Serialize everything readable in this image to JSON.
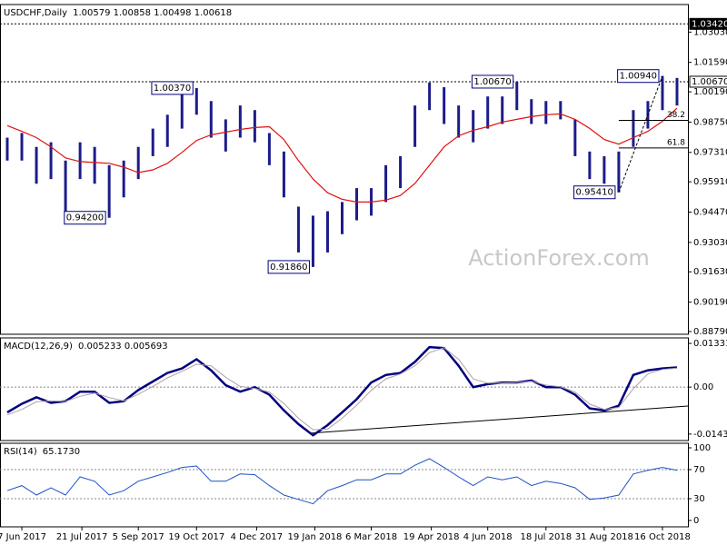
{
  "chart_data": [
    {
      "type": "hilo",
      "title": "USDCHF,Daily",
      "subtitle": "1.00579 1.00858 1.00498 1.00618",
      "x": [
        4,
        12,
        20,
        28,
        36,
        44,
        52,
        60,
        68,
        76,
        84,
        92,
        100,
        108,
        116,
        124,
        132,
        140,
        148,
        156,
        164,
        172,
        180,
        188,
        196,
        204,
        212,
        220,
        228,
        236,
        244,
        252,
        260,
        268,
        276,
        284,
        292,
        300,
        308,
        316,
        324,
        332,
        340,
        348,
        356,
        364,
        372
      ],
      "xlim": [
        0,
        378
      ],
      "high": [
        0.9801,
        0.9823,
        0.9757,
        0.9779,
        0.9692,
        0.9779,
        0.9757,
        0.967,
        0.9692,
        0.9757,
        0.9844,
        0.991,
        1.0019,
        1.0037,
        0.9975,
        0.9888,
        0.9954,
        0.9932,
        0.9823,
        0.9735,
        0.9473,
        0.943,
        0.9451,
        0.9495,
        0.9561,
        0.9561,
        0.967,
        0.9713,
        0.9954,
        1.0063,
        1.0041,
        0.9954,
        0.9932,
        0.9997,
        0.9997,
        1.0067,
        0.9984,
        0.9975,
        0.9975,
        0.9888,
        0.9735,
        0.9713,
        0.9735,
        0.9932,
        0.9975,
        1.0094,
        1.0085
      ],
      "low": [
        0.9692,
        0.9692,
        0.9582,
        0.9604,
        0.944,
        0.9604,
        0.9582,
        0.942,
        0.9517,
        0.9604,
        0.9713,
        0.9757,
        0.9844,
        0.991,
        0.9801,
        0.9735,
        0.9801,
        0.9779,
        0.967,
        0.9517,
        0.9255,
        0.9186,
        0.9255,
        0.9342,
        0.9408,
        0.943,
        0.9495,
        0.9561,
        0.9757,
        0.9932,
        0.9866,
        0.9801,
        0.9779,
        0.9844,
        0.9866,
        0.9932,
        0.9866,
        0.9866,
        0.9888,
        0.9713,
        0.9604,
        0.9582,
        0.9541,
        0.9757,
        0.9844,
        0.9932,
        0.9954
      ],
      "color": "#1c1c8a",
      "series": [
        {
          "color": "#e01010",
          "values": [
            0.9858,
            0.9831,
            0.9801,
            0.9757,
            0.9705,
            0.9687,
            0.9683,
            0.9679,
            0.9661,
            0.9635,
            0.9648,
            0.9679,
            0.9731,
            0.9788,
            0.9814,
            0.9827,
            0.984,
            0.9849,
            0.9853,
            0.9792,
            0.9692,
            0.9604,
            0.9539,
            0.9508,
            0.9495,
            0.9495,
            0.9504,
            0.9526,
            0.9583,
            0.967,
            0.9757,
            0.981,
            0.9836,
            0.9853,
            0.9875,
            0.9888,
            0.9901,
            0.991,
            0.9914,
            0.9888,
            0.9845,
            0.9792,
            0.977,
            0.9801,
            0.9831,
            0.9879,
            0.9941
          ]
        }
      ],
      "ylim": [
        0.8866,
        1.0434
      ],
      "yticks": [
        {
          "value": 1.0303,
          "label": "1.03030"
        },
        {
          "value": 1.0159,
          "label": "1.01590"
        },
        {
          "value": 1.0019,
          "label": "1.00190"
        },
        {
          "value": 0.9875,
          "label": "0.98750"
        },
        {
          "value": 0.9731,
          "label": "0.97310"
        },
        {
          "value": 0.9591,
          "label": "0.95910"
        },
        {
          "value": 0.9447,
          "label": "0.94470"
        },
        {
          "value": 0.9303,
          "label": "0.93030"
        },
        {
          "value": 0.9163,
          "label": "0.91630"
        },
        {
          "value": 0.9019,
          "label": "0.90190"
        },
        {
          "value": 0.8879,
          "label": "0.88790"
        }
      ],
      "levels": [
        {
          "value": 1.0342,
          "label": "1.03420",
          "filled": true
        },
        {
          "value": 1.0067,
          "label": "1.00670",
          "filled": false
        }
      ],
      "annotations": [
        {
          "x": 108,
          "value": 1.0037,
          "label": "1.00370"
        },
        {
          "x": 60,
          "value": 0.942,
          "label": "0.94200"
        },
        {
          "x": 172,
          "value": 0.9186,
          "label": "0.91860"
        },
        {
          "x": 284,
          "value": 1.0067,
          "label": "1.00670"
        },
        {
          "x": 340,
          "value": 0.9541,
          "label": "0.95410"
        },
        {
          "x": 364,
          "value": 1.0094,
          "label": "1.00940"
        }
      ],
      "fib": [
        {
          "value": 0.9883,
          "label": "38.2"
        },
        {
          "value": 0.9752,
          "label": "61.8"
        }
      ],
      "watermark": "ActionForex.com"
    },
    {
      "type": "line",
      "title": "MACD(12,26,9)",
      "subtitle": "0.005233 0.005693",
      "series": [
        {
          "color": "#000080",
          "width": 2.5,
          "values": [
            -0.0077,
            -0.0051,
            -0.0031,
            -0.0048,
            -0.0043,
            -0.0014,
            -0.0014,
            -0.0048,
            -0.0043,
            -0.0009,
            0.0017,
            0.0043,
            0.0057,
            0.0085,
            0.0051,
            0.0006,
            -0.0014,
            0,
            -0.0023,
            -0.0071,
            -0.0113,
            -0.0147,
            -0.0116,
            -0.0077,
            -0.0037,
            0.0014,
            0.0037,
            0.0043,
            0.0077,
            0.0122,
            0.0119,
            0.0065,
            0,
            0.0009,
            0.0014,
            0.0014,
            0.002,
            0,
            0,
            -0.0023,
            -0.0065,
            -0.0071,
            -0.0057,
            0.0037,
            0.0051,
            0.0057,
            0.006
          ]
        },
        {
          "color": "#b0a0a8",
          "width": 1,
          "values": [
            -0.0085,
            -0.0068,
            -0.0045,
            -0.0042,
            -0.0044,
            -0.0028,
            -0.0018,
            -0.0032,
            -0.0042,
            -0.0022,
            0.0002,
            0.0028,
            0.0048,
            0.007,
            0.0065,
            0.003,
            0.0002,
            -0.0004,
            -0.0015,
            -0.005,
            -0.0095,
            -0.013,
            -0.0128,
            -0.0095,
            -0.0055,
            -0.001,
            0.0025,
            0.004,
            0.0065,
            0.0105,
            0.012,
            0.0085,
            0.0025,
            0.0012,
            0.0012,
            0.0014,
            0.0018,
            0.0006,
            0.0001,
            -0.0015,
            -0.0052,
            -0.0068,
            -0.0062,
            -0.0005,
            0.004,
            0.0054,
            0.0058
          ]
        }
      ],
      "ylim": [
        -0.0163,
        0.015
      ],
      "yticks": [
        0.013319,
        {
          "value": 0,
          "label": "0.00"
        },
        -0.014323
      ],
      "reference_lines": [
        0
      ]
    },
    {
      "type": "line",
      "title": "RSI(14)",
      "subtitle": "65.1730",
      "series": [
        {
          "color": "#1e50c8",
          "width": 1,
          "values": [
            41,
            48,
            35,
            45,
            35,
            60,
            54,
            35,
            41,
            54,
            60,
            66,
            73,
            75,
            54,
            54,
            64,
            63,
            48,
            35,
            29,
            23,
            41,
            48,
            56,
            56,
            64,
            64,
            76,
            85,
            73,
            60,
            48,
            60,
            56,
            60,
            48,
            54,
            51,
            45,
            29,
            31,
            35,
            64,
            69,
            73,
            69
          ]
        }
      ],
      "ylim": [
        -8.75,
        106.25
      ],
      "yticks": [
        100,
        70,
        30,
        0
      ],
      "reference_lines": [
        70,
        30
      ],
      "xticks": [
        {
          "value": 12,
          "label": "7 Jun 2017"
        },
        {
          "value": 45,
          "label": "21 Jul 2017"
        },
        {
          "value": 76,
          "label": "5 Sep 2017"
        },
        {
          "value": 108,
          "label": "19 Oct 2017"
        },
        {
          "value": 141,
          "label": "4 Dec 2017"
        },
        {
          "value": 173,
          "label": "19 Jan 2018"
        },
        {
          "value": 204,
          "label": "6 Mar 2018"
        },
        {
          "value": 237,
          "label": "19 Apr 2018"
        },
        {
          "value": 268,
          "label": "4 Jun 2018"
        },
        {
          "value": 300,
          "label": "18 Jul 2018"
        },
        {
          "value": 332,
          "label": "31 Aug 2018"
        },
        {
          "value": 364,
          "label": "16 Oct 2018"
        }
      ]
    }
  ]
}
